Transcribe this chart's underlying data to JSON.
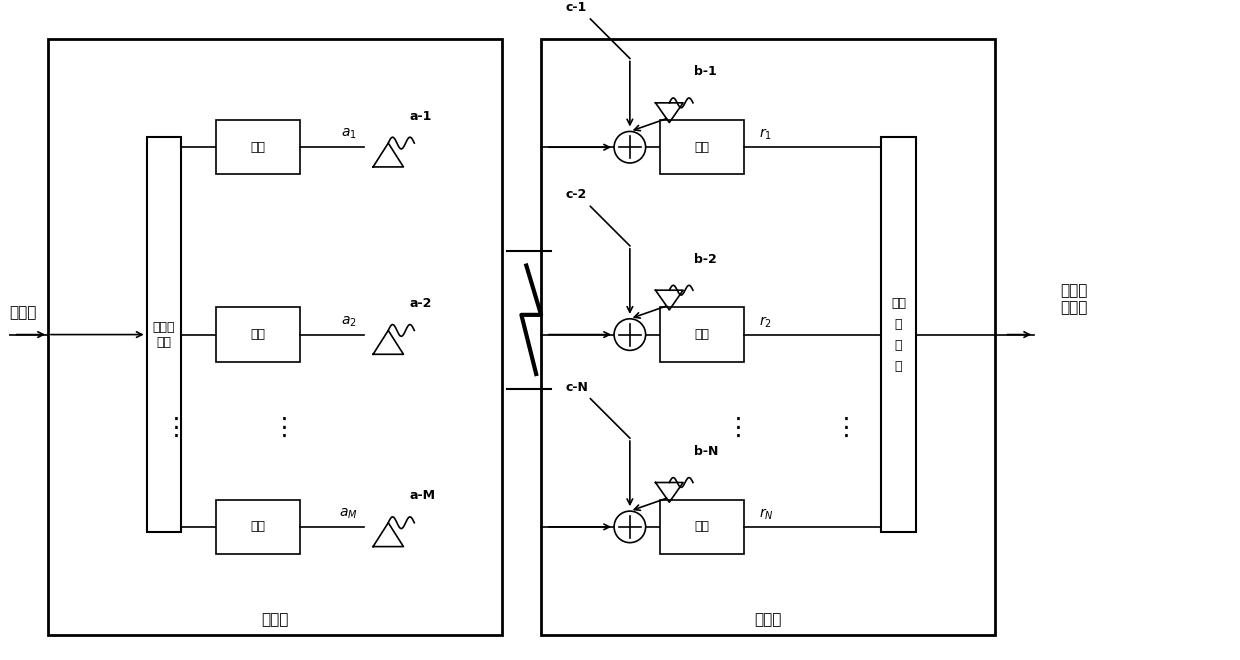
{
  "fig_width": 12.4,
  "fig_height": 6.6,
  "dpi": 100,
  "bg_color": "#ffffff",
  "tx_label": "发射端",
  "rx_label": "接收端",
  "data_flow_label": "数据流",
  "recovered_label": "恢复的\n数据流",
  "splitter_label": "信号分\n离器",
  "detector_label": "信号\n检\n测\n器",
  "mod_label": "调制",
  "demod_label": "解调",
  "antenna_labels_tx": [
    "a-1",
    "a-2",
    "a-M"
  ],
  "signal_labels_tx": [
    "$a_1$",
    "$a_2$",
    "$a_M$"
  ],
  "antenna_labels_rx_top": [
    "b-1",
    "b-2",
    "b-N"
  ],
  "antenna_labels_rx_left": [
    "c-1",
    "c-2",
    "c-N"
  ],
  "signal_labels_rx": [
    "$r_1$",
    "$r_2$",
    "$r_N$"
  ]
}
